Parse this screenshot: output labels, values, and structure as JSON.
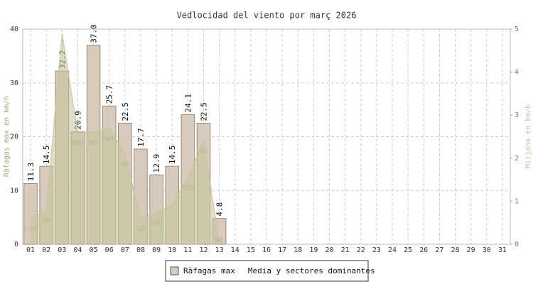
{
  "chart_data": {
    "type": "bar",
    "title": "Vedlocidad del viento por març 2026",
    "ylabel": "Ràfagas max en km/h",
    "y2label": "Mitjana en km/h",
    "categories": [
      "01",
      "02",
      "03",
      "04",
      "05",
      "06",
      "07",
      "08",
      "09",
      "10",
      "11",
      "12",
      "13",
      "14",
      "15",
      "16",
      "17",
      "18",
      "19",
      "20",
      "21",
      "22",
      "23",
      "24",
      "25",
      "26",
      "27",
      "28",
      "29",
      "30",
      "31"
    ],
    "ylim": [
      0,
      40
    ],
    "yticks": [
      0,
      10,
      20,
      30,
      40
    ],
    "y2lim": [
      0,
      5
    ],
    "y2ticks": [
      0,
      1,
      2,
      3,
      4,
      5
    ],
    "grid": true,
    "legend": "bottom",
    "series": [
      {
        "name": "Ràfagas max",
        "color": "#d9cbbb",
        "values": [
          11.3,
          14.5,
          32.2,
          20.9,
          37.0,
          25.7,
          22.5,
          17.7,
          12.9,
          14.5,
          24.1,
          22.5,
          4.8,
          null,
          null,
          null,
          null,
          null,
          null,
          null,
          null,
          null,
          null,
          null,
          null,
          null,
          null,
          null,
          null,
          null,
          null
        ],
        "value_labels": [
          "11.3",
          "14.5",
          "32.2",
          "20.9",
          "37.0",
          "25.7",
          "22.5",
          "17.7",
          "12.9",
          "14.5",
          "24.1",
          "22.5",
          "4.8",
          null,
          null,
          null,
          null,
          null,
          null,
          null,
          null,
          null,
          null,
          null,
          null,
          null,
          null,
          null,
          null,
          null,
          null
        ]
      },
      {
        "name": "Media y sectores dominantes",
        "type": "area",
        "axis": "y2",
        "color": "#c4c49c",
        "values": [
          0.6,
          0.8,
          4.9,
          2.6,
          2.6,
          2.7,
          2.1,
          0.6,
          0.75,
          0.9,
          1.55,
          2.4,
          0.05,
          null,
          null,
          null,
          null,
          null,
          null,
          null,
          null,
          null,
          null,
          null,
          null,
          null,
          null,
          null,
          null,
          null,
          null
        ],
        "labels": [
          "SSO",
          "SO",
          null,
          "NNE",
          "NO",
          "NO",
          "NO",
          "SO",
          "SSO",
          null,
          "SSO",
          "SO",
          "NE",
          null,
          null,
          null,
          null,
          null,
          null,
          null,
          null,
          null,
          null,
          null,
          null,
          null,
          null,
          null,
          null,
          null,
          null
        ]
      }
    ]
  }
}
